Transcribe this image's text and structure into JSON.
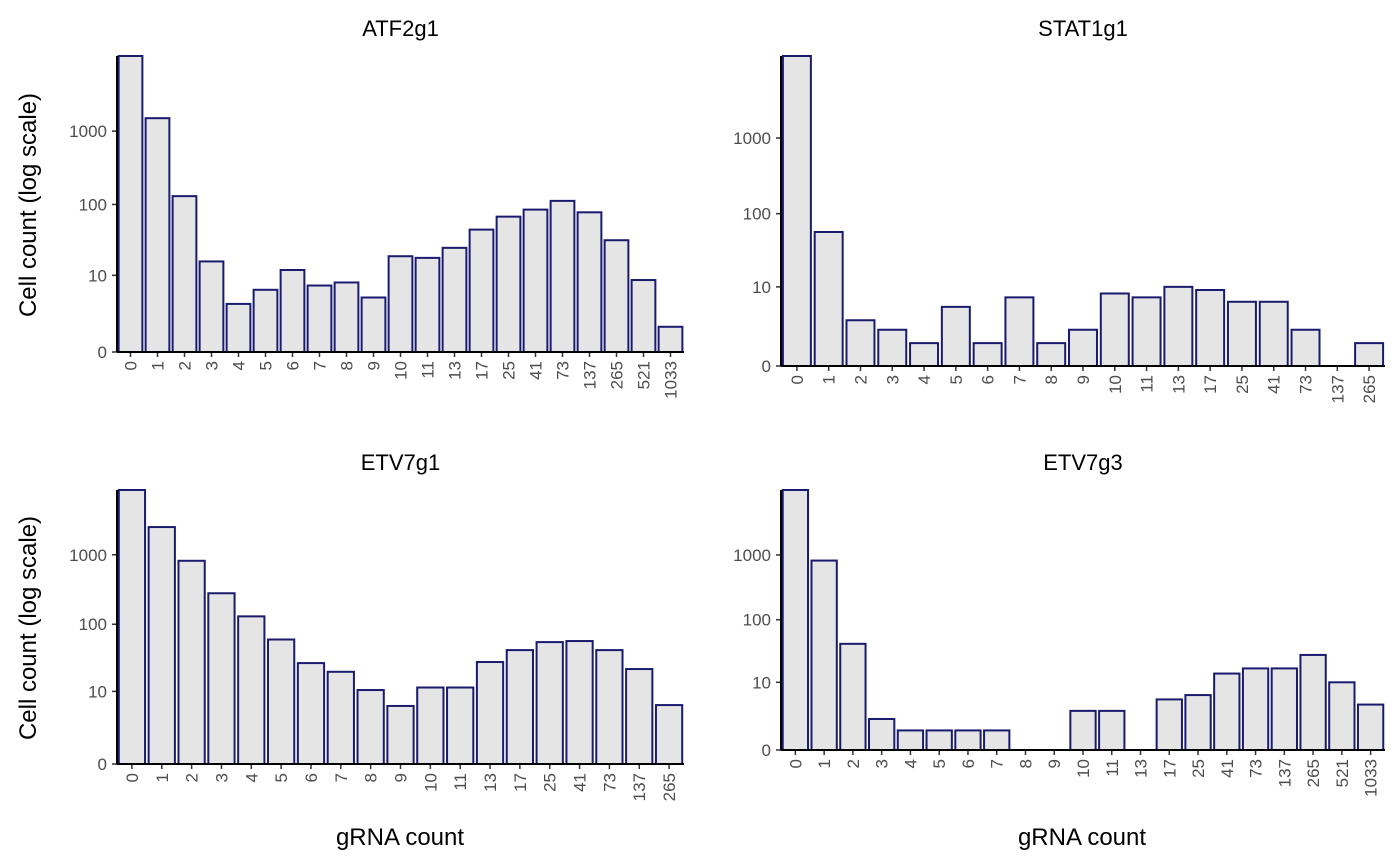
{
  "colors": {
    "bar_fill": "#e5e5e5",
    "bar_stroke": "#1a1a6e",
    "axis": "#000000",
    "tick_text": "#4d4d4d"
  },
  "axes": {
    "xlabel": "gRNA count",
    "ylabel": "Cell count (log scale)"
  },
  "chart_data": [
    {
      "type": "bar",
      "title": "ATF2g1",
      "scale": "log1p",
      "yticks": [
        0,
        10,
        100,
        1000
      ],
      "categories": [
        "0",
        "1",
        "2",
        "3",
        "4",
        "5",
        "6",
        "7",
        "8",
        "9",
        "10",
        "11",
        "13",
        "17",
        "25",
        "41",
        "73",
        "137",
        "265",
        "521",
        "1033"
      ],
      "values": [
        10500,
        1500,
        130,
        16,
        3.5,
        6,
        12,
        7,
        7.8,
        4.5,
        19,
        18,
        25,
        45,
        68,
        85,
        112,
        78,
        32,
        8.5,
        1.2
      ]
    },
    {
      "type": "bar",
      "title": "STAT1g1",
      "scale": "log1p",
      "yticks": [
        0,
        10,
        100,
        1000
      ],
      "categories": [
        "0",
        "1",
        "2",
        "3",
        "4",
        "5",
        "6",
        "7",
        "8",
        "9",
        "10",
        "11",
        "13",
        "17",
        "25",
        "41",
        "73",
        "137",
        "265"
      ],
      "values": [
        12000,
        57,
        3,
        2,
        1,
        5,
        1,
        7,
        1,
        2,
        8,
        7,
        10,
        9,
        6,
        6,
        2,
        0,
        1
      ]
    },
    {
      "type": "bar",
      "title": "ETV7g1",
      "scale": "log1p",
      "yticks": [
        0,
        10,
        100,
        1000
      ],
      "categories": [
        "0",
        "1",
        "2",
        "3",
        "4",
        "5",
        "6",
        "7",
        "8",
        "9",
        "10",
        "11",
        "13",
        "17",
        "25",
        "41",
        "73",
        "137",
        "265"
      ],
      "values": [
        8500,
        2500,
        820,
        280,
        130,
        60,
        27,
        20,
        10.5,
        5.8,
        11.5,
        11.5,
        28,
        42,
        55,
        57,
        42,
        22,
        6
      ]
    },
    {
      "type": "bar",
      "title": "ETV7g3",
      "scale": "log1p",
      "yticks": [
        0,
        10,
        100,
        1000
      ],
      "categories": [
        "0",
        "1",
        "2",
        "3",
        "4",
        "5",
        "6",
        "7",
        "8",
        "9",
        "10",
        "11",
        "13",
        "17",
        "25",
        "41",
        "73",
        "137",
        "265",
        "521",
        "1033"
      ],
      "values": [
        10000,
        820,
        42,
        2,
        1,
        1,
        1,
        1,
        0,
        0,
        3,
        3,
        0,
        5,
        6,
        14,
        17,
        17,
        28,
        10,
        4
      ]
    }
  ]
}
